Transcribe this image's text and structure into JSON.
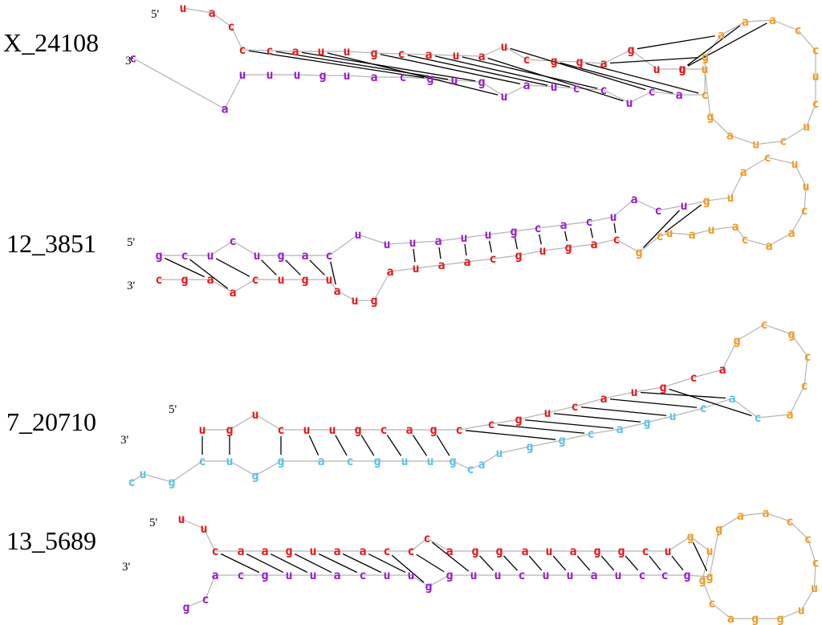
{
  "colors": {
    "red": "#e6161b",
    "purple": "#9b1bd1",
    "orange": "#f39a1e",
    "blue": "#56c3ec",
    "backbone": "#b4b4b4",
    "pair": "#000000"
  },
  "structures": [
    {
      "name": "X_24108",
      "five_prime": "5'",
      "three_prime": "3'",
      "nucleotides": [
        [
          "u",
          "red"
        ],
        [
          "a",
          "red"
        ],
        [
          "c",
          "red"
        ],
        [
          "c",
          "red"
        ],
        [
          "c",
          "red"
        ],
        [
          "a",
          "red"
        ],
        [
          "u",
          "red"
        ],
        [
          "u",
          "red"
        ],
        [
          "g",
          "red"
        ],
        [
          "c",
          "red"
        ],
        [
          "a",
          "red"
        ],
        [
          "u",
          "red"
        ],
        [
          "a",
          "red"
        ],
        [
          "u",
          "red"
        ],
        [
          "c",
          "red"
        ],
        [
          "g",
          "red"
        ],
        [
          "g",
          "red"
        ],
        [
          "a",
          "red"
        ],
        [
          "g",
          "red"
        ],
        [
          "u",
          "red"
        ],
        [
          "u",
          "red"
        ],
        [
          "g",
          "red"
        ],
        [
          "u",
          "orange"
        ],
        [
          "g",
          "orange"
        ],
        [
          "a",
          "orange"
        ],
        [
          "u",
          "orange"
        ],
        [
          "c",
          "orange"
        ],
        [
          "u",
          "orange"
        ],
        [
          "c",
          "orange"
        ],
        [
          "u",
          "orange"
        ],
        [
          "c",
          "orange"
        ],
        [
          "c",
          "orange"
        ],
        [
          "a",
          "orange"
        ],
        [
          "a",
          "orange"
        ],
        [
          "a",
          "orange"
        ],
        [
          "g",
          "orange"
        ],
        [
          "c",
          "orange"
        ],
        [
          "a",
          "purple"
        ],
        [
          "c",
          "purple"
        ],
        [
          "u",
          "purple"
        ],
        [
          "c",
          "purple"
        ],
        [
          "c",
          "purple"
        ],
        [
          "u",
          "purple"
        ],
        [
          "a",
          "purple"
        ],
        [
          "u",
          "purple"
        ],
        [
          "g",
          "purple"
        ],
        [
          "u",
          "purple"
        ],
        [
          "g",
          "purple"
        ],
        [
          "c",
          "purple"
        ],
        [
          "a",
          "purple"
        ],
        [
          "u",
          "purple"
        ],
        [
          "g",
          "purple"
        ],
        [
          "u",
          "purple"
        ],
        [
          "u",
          "purple"
        ],
        [
          "u",
          "purple"
        ],
        [
          "a",
          "purple"
        ],
        [
          "c",
          "purple"
        ]
      ],
      "pairs": [
        [
          3,
          47
        ],
        [
          4,
          46
        ],
        [
          5,
          45
        ],
        [
          6,
          44
        ],
        [
          8,
          43
        ],
        [
          9,
          42
        ],
        [
          10,
          41
        ],
        [
          11,
          40
        ],
        [
          12,
          39
        ],
        [
          13,
          38
        ],
        [
          15,
          37
        ],
        [
          16,
          36
        ],
        [
          17,
          35
        ],
        [
          18,
          34
        ],
        [
          20,
          33
        ],
        [
          21,
          32
        ]
      ]
    },
    {
      "name": "12_3851",
      "five_prime": "5'",
      "three_prime": "3'",
      "nucleotides": [
        [
          "g",
          "purple"
        ],
        [
          "c",
          "purple"
        ],
        [
          "u",
          "purple"
        ],
        [
          "c",
          "purple"
        ],
        [
          "u",
          "purple"
        ],
        [
          "g",
          "purple"
        ],
        [
          "a",
          "purple"
        ],
        [
          "c",
          "purple"
        ],
        [
          "u",
          "purple"
        ],
        [
          "u",
          "purple"
        ],
        [
          "u",
          "purple"
        ],
        [
          "a",
          "purple"
        ],
        [
          "u",
          "purple"
        ],
        [
          "u",
          "purple"
        ],
        [
          "g",
          "purple"
        ],
        [
          "c",
          "purple"
        ],
        [
          "a",
          "purple"
        ],
        [
          "c",
          "purple"
        ],
        [
          "u",
          "purple"
        ],
        [
          "a",
          "purple"
        ],
        [
          "c",
          "purple"
        ],
        [
          "u",
          "purple"
        ],
        [
          "g",
          "orange"
        ],
        [
          "u",
          "orange"
        ],
        [
          "a",
          "orange"
        ],
        [
          "c",
          "orange"
        ],
        [
          "u",
          "orange"
        ],
        [
          "u",
          "orange"
        ],
        [
          "c",
          "orange"
        ],
        [
          "a",
          "orange"
        ],
        [
          "a",
          "orange"
        ],
        [
          "c",
          "orange"
        ],
        [
          "a",
          "orange"
        ],
        [
          "u",
          "orange"
        ],
        [
          "a",
          "orange"
        ],
        [
          "u",
          "orange"
        ],
        [
          "c",
          "orange"
        ],
        [
          "g",
          "orange"
        ],
        [
          "c",
          "red"
        ],
        [
          "a",
          "red"
        ],
        [
          "g",
          "red"
        ],
        [
          "u",
          "red"
        ],
        [
          "g",
          "red"
        ],
        [
          "c",
          "red"
        ],
        [
          "a",
          "red"
        ],
        [
          "a",
          "red"
        ],
        [
          "u",
          "red"
        ],
        [
          "a",
          "red"
        ],
        [
          "g",
          "red"
        ],
        [
          "u",
          "red"
        ],
        [
          "a",
          "red"
        ],
        [
          "u",
          "red"
        ],
        [
          "g",
          "red"
        ],
        [
          "u",
          "red"
        ],
        [
          "c",
          "red"
        ],
        [
          "a",
          "red"
        ],
        [
          "a",
          "red"
        ],
        [
          "g",
          "red"
        ],
        [
          "c",
          "red"
        ]
      ],
      "pairs": [
        [
          0,
          56
        ],
        [
          1,
          55
        ],
        [
          2,
          54
        ],
        [
          4,
          53
        ],
        [
          5,
          52
        ],
        [
          6,
          51
        ],
        [
          7,
          50
        ],
        [
          10,
          46
        ],
        [
          11,
          45
        ],
        [
          12,
          44
        ],
        [
          13,
          43
        ],
        [
          14,
          42
        ],
        [
          15,
          41
        ],
        [
          16,
          40
        ],
        [
          17,
          39
        ],
        [
          18,
          38
        ],
        [
          21,
          37
        ],
        [
          22,
          36
        ]
      ]
    },
    {
      "name": "7_20710",
      "five_prime": "5'",
      "three_prime": "3'",
      "nucleotides": [
        [
          "u",
          "red"
        ],
        [
          "g",
          "red"
        ],
        [
          "u",
          "red"
        ],
        [
          "c",
          "red"
        ],
        [
          "u",
          "red"
        ],
        [
          "u",
          "red"
        ],
        [
          "g",
          "red"
        ],
        [
          "c",
          "red"
        ],
        [
          "a",
          "red"
        ],
        [
          "g",
          "red"
        ],
        [
          "c",
          "red"
        ],
        [
          "c",
          "red"
        ],
        [
          "g",
          "red"
        ],
        [
          "u",
          "red"
        ],
        [
          "c",
          "red"
        ],
        [
          "a",
          "red"
        ],
        [
          "u",
          "red"
        ],
        [
          "g",
          "red"
        ],
        [
          "c",
          "red"
        ],
        [
          "a",
          "red"
        ],
        [
          "g",
          "orange"
        ],
        [
          "c",
          "orange"
        ],
        [
          "g",
          "orange"
        ],
        [
          "c",
          "orange"
        ],
        [
          "c",
          "orange"
        ],
        [
          "a",
          "orange"
        ],
        [
          "c",
          "blue"
        ],
        [
          "a",
          "blue"
        ],
        [
          "c",
          "blue"
        ],
        [
          "u",
          "blue"
        ],
        [
          "g",
          "blue"
        ],
        [
          "a",
          "blue"
        ],
        [
          "c",
          "blue"
        ],
        [
          "g",
          "blue"
        ],
        [
          "g",
          "blue"
        ],
        [
          "u",
          "blue"
        ],
        [
          "a",
          "blue"
        ],
        [
          "c",
          "blue"
        ],
        [
          "g",
          "blue"
        ],
        [
          "u",
          "blue"
        ],
        [
          "u",
          "blue"
        ],
        [
          "g",
          "blue"
        ],
        [
          "c",
          "blue"
        ],
        [
          "a",
          "blue"
        ],
        [
          "g",
          "blue"
        ],
        [
          "g",
          "blue"
        ],
        [
          "u",
          "blue"
        ],
        [
          "c",
          "blue"
        ],
        [
          "g",
          "blue"
        ],
        [
          "u",
          "blue"
        ],
        [
          "c",
          "blue"
        ]
      ],
      "pairs": [
        [
          0,
          47
        ],
        [
          1,
          46
        ],
        [
          3,
          44
        ],
        [
          4,
          43
        ],
        [
          5,
          42
        ],
        [
          6,
          41
        ],
        [
          7,
          40
        ],
        [
          8,
          39
        ],
        [
          9,
          38
        ],
        [
          10,
          33
        ],
        [
          11,
          32
        ],
        [
          12,
          31
        ],
        [
          13,
          30
        ],
        [
          14,
          29
        ],
        [
          15,
          28
        ],
        [
          16,
          27
        ],
        [
          17,
          26
        ]
      ]
    },
    {
      "name": "13_5689",
      "five_prime": "5'",
      "three_prime": "3'",
      "nucleotides": [
        [
          "u",
          "red"
        ],
        [
          "u",
          "red"
        ],
        [
          "c",
          "red"
        ],
        [
          "a",
          "red"
        ],
        [
          "a",
          "red"
        ],
        [
          "g",
          "red"
        ],
        [
          "u",
          "red"
        ],
        [
          "a",
          "red"
        ],
        [
          "a",
          "red"
        ],
        [
          "c",
          "red"
        ],
        [
          "c",
          "red"
        ],
        [
          "c",
          "red"
        ],
        [
          "a",
          "red"
        ],
        [
          "g",
          "red"
        ],
        [
          "g",
          "red"
        ],
        [
          "a",
          "red"
        ],
        [
          "u",
          "red"
        ],
        [
          "a",
          "red"
        ],
        [
          "g",
          "red"
        ],
        [
          "g",
          "red"
        ],
        [
          "c",
          "red"
        ],
        [
          "u",
          "red"
        ],
        [
          "g",
          "orange"
        ],
        [
          "u",
          "orange"
        ],
        [
          "g",
          "orange"
        ],
        [
          "c",
          "orange"
        ],
        [
          "a",
          "orange"
        ],
        [
          "g",
          "orange"
        ],
        [
          "g",
          "orange"
        ],
        [
          "u",
          "orange"
        ],
        [
          "u",
          "orange"
        ],
        [
          "c",
          "orange"
        ],
        [
          "c",
          "orange"
        ],
        [
          "c",
          "orange"
        ],
        [
          "a",
          "orange"
        ],
        [
          "a",
          "orange"
        ],
        [
          "g",
          "orange"
        ],
        [
          "g",
          "orange"
        ],
        [
          "g",
          "purple"
        ],
        [
          "c",
          "purple"
        ],
        [
          "c",
          "purple"
        ],
        [
          "u",
          "purple"
        ],
        [
          "a",
          "purple"
        ],
        [
          "u",
          "purple"
        ],
        [
          "u",
          "purple"
        ],
        [
          "c",
          "purple"
        ],
        [
          "u",
          "purple"
        ],
        [
          "u",
          "purple"
        ],
        [
          "g",
          "purple"
        ],
        [
          "g",
          "purple"
        ],
        [
          "u",
          "purple"
        ],
        [
          "u",
          "purple"
        ],
        [
          "c",
          "purple"
        ],
        [
          "a",
          "purple"
        ],
        [
          "u",
          "purple"
        ],
        [
          "u",
          "purple"
        ],
        [
          "g",
          "purple"
        ],
        [
          "c",
          "purple"
        ],
        [
          "a",
          "purple"
        ],
        [
          "c",
          "purple"
        ],
        [
          "g",
          "purple"
        ]
      ],
      "pairs": [
        [
          2,
          56
        ],
        [
          3,
          55
        ],
        [
          4,
          54
        ],
        [
          5,
          53
        ],
        [
          6,
          52
        ],
        [
          7,
          51
        ],
        [
          8,
          50
        ],
        [
          9,
          49
        ],
        [
          10,
          48
        ],
        [
          11,
          47
        ],
        [
          13,
          46
        ],
        [
          14,
          45
        ],
        [
          15,
          44
        ],
        [
          16,
          43
        ],
        [
          17,
          42
        ],
        [
          18,
          41
        ],
        [
          19,
          40
        ],
        [
          20,
          39
        ],
        [
          21,
          38
        ],
        [
          22,
          37
        ]
      ]
    }
  ]
}
